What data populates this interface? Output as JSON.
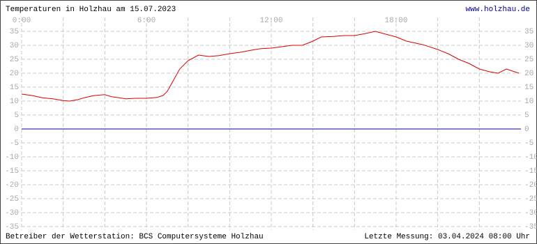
{
  "chart_data": {
    "type": "line",
    "title": "Temperaturen in Holzhau am 15.07.2023",
    "source_link": "www.holzhau.de",
    "footer_left": "Betreiber der Wetterstation: BCS Computersysteme Holzhau",
    "footer_right": "Letzte Messung: 03.04.2024 08:00 Uhr",
    "x": [
      0,
      0.5,
      1,
      1.5,
      2,
      2.3,
      2.7,
      3,
      3.5,
      4,
      4.3,
      4.7,
      5,
      5.5,
      6,
      6.5,
      6.8,
      7,
      7.3,
      7.6,
      8,
      8.5,
      9,
      9.5,
      10,
      10.5,
      11,
      11.5,
      12,
      12.5,
      13,
      13.5,
      14,
      14.4,
      15,
      15.5,
      16,
      16.5,
      17,
      17.5,
      18,
      18.5,
      19.3,
      20,
      20.5,
      21,
      21.5,
      22,
      22.5,
      22.9,
      23.3,
      23.7,
      23.9
    ],
    "series": [
      {
        "name": "Temperatur",
        "color": "#dd0000",
        "values": [
          12.5,
          12,
          11.2,
          10.8,
          10.2,
          10,
          10.5,
          11.2,
          12,
          12.3,
          11.6,
          11.2,
          10.8,
          11,
          11,
          11.3,
          12,
          13.5,
          17.5,
          21.5,
          24.5,
          26.5,
          26,
          26.3,
          27,
          27.5,
          28.2,
          28.8,
          29,
          29.5,
          30,
          30,
          31.5,
          33,
          33.2,
          33.5,
          33.5,
          34.2,
          35,
          34,
          33,
          31.5,
          30.2,
          28.5,
          27,
          25,
          23.5,
          21.5,
          20.5,
          20,
          21.5,
          20.5,
          20
        ]
      }
    ],
    "zero_line_color": "#000099",
    "xlim": [
      0,
      24
    ],
    "xticks": [
      {
        "value": 0,
        "label": "0:00"
      },
      {
        "value": 6,
        "label": "6:00"
      },
      {
        "value": 12,
        "label": "12:00"
      },
      {
        "value": 18,
        "label": "18:00"
      }
    ],
    "minor_xticks": [
      2,
      4,
      8,
      10,
      14,
      16,
      20,
      22
    ],
    "ylim": [
      -35,
      35
    ],
    "yticks": [
      -35,
      -30,
      -25,
      -20,
      -15,
      -10,
      -5,
      0,
      5,
      10,
      15,
      20,
      25,
      30,
      35
    ],
    "grid": true
  }
}
